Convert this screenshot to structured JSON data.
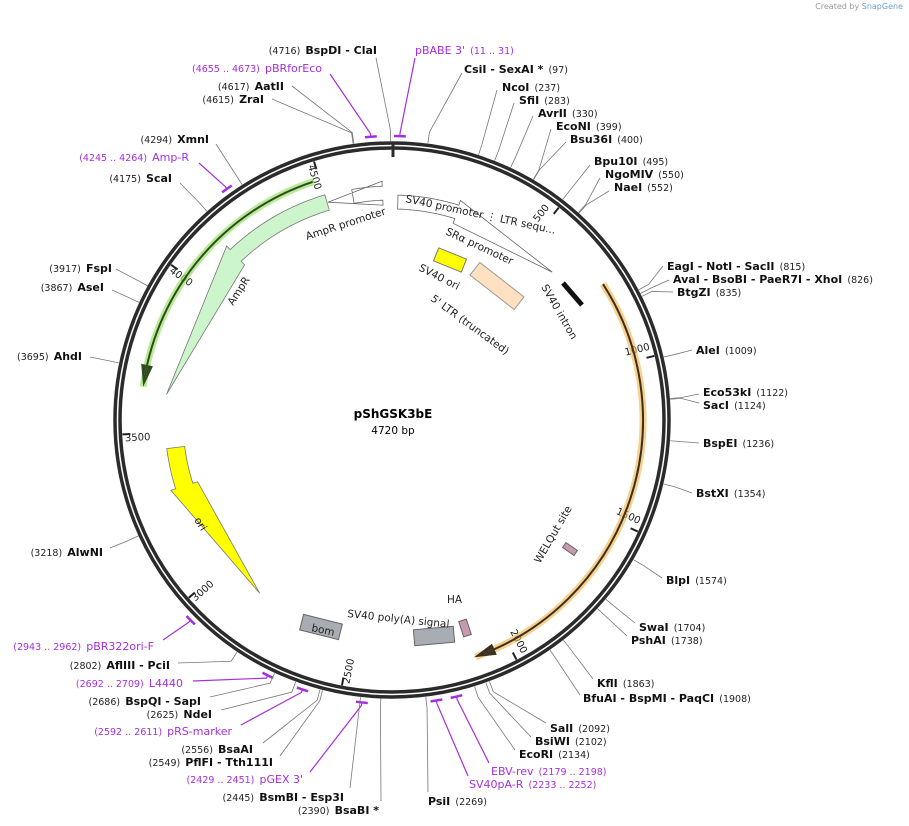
{
  "credit": {
    "prefix": "Created by",
    "brand": "SnapGene"
  },
  "plasmid": {
    "name": "pShGSK3bE",
    "size": "4720 bp",
    "length_bp": 4720
  },
  "colors": {
    "primer": "#a52ee0",
    "ampr": "#ccf5cc",
    "ori": "#ffff00",
    "highlight_orange": "#f5b041",
    "highlight_green": "#9be36b",
    "ltr": "#ffe0c0",
    "gray_feature": "#a7adb3",
    "tag": "#c79ab0"
  },
  "ticks": [
    "500",
    "1000",
    "1500",
    "2000",
    "2500",
    "3000",
    "3500",
    "4000",
    "4500"
  ],
  "features": {
    "ampr_promoter": "AmpR promoter",
    "ampr": "AmpR",
    "ori": "ori",
    "sv40_promoter": "SV40 promoter ⋮ LTR sequ...",
    "sra_promoter": "SRα promoter",
    "sv40_ori": "SV40 ori",
    "ltr": "5' LTR (truncated)",
    "sv40_intron": "SV40 intron",
    "welqut": "WELQut site",
    "ha": "HA",
    "sv40_polya": "SV40 poly(A) signal",
    "bom": "bom"
  },
  "sites": [
    {
      "name": "BspDI   - ClaI",
      "pos": "(4716)",
      "bp": 4716
    },
    {
      "name": "pBRforEco",
      "pos": "(4655 .. 4673)",
      "bp": 4664,
      "primer": true
    },
    {
      "name": "AatII",
      "pos": "(4617)",
      "bp": 4617
    },
    {
      "name": "ZraI",
      "pos": "(4615)",
      "bp": 4615
    },
    {
      "name": "XmnI",
      "pos": "(4294)",
      "bp": 4294
    },
    {
      "name": "Amp-R",
      "pos": "(4245 .. 4264)",
      "bp": 4254,
      "primer": true
    },
    {
      "name": "ScaI",
      "pos": "(4175)",
      "bp": 4175
    },
    {
      "name": "FspI",
      "pos": "(3917)",
      "bp": 3917
    },
    {
      "name": "AseI",
      "pos": "(3867)",
      "bp": 3867
    },
    {
      "name": "AhdI",
      "pos": "(3695)",
      "bp": 3695
    },
    {
      "name": "AlwNI",
      "pos": "(3218)",
      "bp": 3218
    },
    {
      "name": "pBR322ori-F",
      "pos": "(2943 .. 2962)",
      "bp": 2952,
      "primer": true
    },
    {
      "name": "AflIII   - PciI",
      "pos": "(2802)",
      "bp": 2802
    },
    {
      "name": "L4440",
      "pos": "(2692 .. 2709)",
      "bp": 2700,
      "primer": true
    },
    {
      "name": "BspQI   - SapI",
      "pos": "(2686)",
      "bp": 2686
    },
    {
      "name": "NdeI",
      "pos": "(2625)",
      "bp": 2625
    },
    {
      "name": "pRS-marker",
      "pos": "(2592 .. 2611)",
      "bp": 2601,
      "primer": true
    },
    {
      "name": "BsaAI",
      "pos": "(2556)",
      "bp": 2556
    },
    {
      "name": "PflFI   - Tth111I",
      "pos": "(2549)",
      "bp": 2549
    },
    {
      "name": "pGEX 3'",
      "pos": "(2429 .. 2451)",
      "bp": 2440,
      "primer": true
    },
    {
      "name": "BsmBI   - Esp3I",
      "pos": "(2445)",
      "bp": 2445
    },
    {
      "name": "BsaBI  *",
      "pos": "(2390)",
      "bp": 2390
    },
    {
      "name": "pBABE 3'",
      "pos": "(11 .. 31)",
      "bp": 21,
      "primer": true
    },
    {
      "name": "CsiI   - SexAI  *",
      "pos": "(97)",
      "bp": 97
    },
    {
      "name": "NcoI",
      "pos": "(237)",
      "bp": 237
    },
    {
      "name": "SfiI",
      "pos": "(283)",
      "bp": 283
    },
    {
      "name": "AvrII",
      "pos": "(330)",
      "bp": 330
    },
    {
      "name": "EcoNI",
      "pos": "(399)",
      "bp": 399
    },
    {
      "name": "Bsu36I",
      "pos": "(400)",
      "bp": 400
    },
    {
      "name": "Bpu10I",
      "pos": "(495)",
      "bp": 495
    },
    {
      "name": "NgoMIV",
      "pos": "(550)",
      "bp": 550
    },
    {
      "name": "NaeI",
      "pos": "(552)",
      "bp": 552
    },
    {
      "name": "EagI   - NotI   - SacII",
      "pos": "(815)",
      "bp": 815
    },
    {
      "name": "AvaI   - BsoBI   - PaeR7I   - XhoI",
      "pos": "(826)",
      "bp": 826
    },
    {
      "name": "BtgZI",
      "pos": "(835)",
      "bp": 835
    },
    {
      "name": "AleI",
      "pos": "(1009)",
      "bp": 1009
    },
    {
      "name": "Eco53kI",
      "pos": "(1122)",
      "bp": 1122
    },
    {
      "name": "SacI",
      "pos": "(1124)",
      "bp": 1124
    },
    {
      "name": "BspEI",
      "pos": "(1236)",
      "bp": 1236
    },
    {
      "name": "BstXI",
      "pos": "(1354)",
      "bp": 1354
    },
    {
      "name": "BlpI",
      "pos": "(1574)",
      "bp": 1574
    },
    {
      "name": "SwaI",
      "pos": "(1704)",
      "bp": 1704
    },
    {
      "name": "PshAI",
      "pos": "(1738)",
      "bp": 1738
    },
    {
      "name": "KflI",
      "pos": "(1863)",
      "bp": 1863
    },
    {
      "name": "BfuAI   - BspMI   - PaqCI",
      "pos": "(1908)",
      "bp": 1908
    },
    {
      "name": "SalI",
      "pos": "(2092)",
      "bp": 2092
    },
    {
      "name": "BsiWI",
      "pos": "(2102)",
      "bp": 2102
    },
    {
      "name": "EcoRI",
      "pos": "(2134)",
      "bp": 2134
    },
    {
      "name": "EBV-rev",
      "pos": "(2179 .. 2198)",
      "bp": 2188,
      "primer": true
    },
    {
      "name": "SV40pA-R",
      "pos": "(2233 .. 2252)",
      "bp": 2242,
      "primer": true
    },
    {
      "name": "PsiI",
      "pos": "(2269)",
      "bp": 2269
    }
  ]
}
